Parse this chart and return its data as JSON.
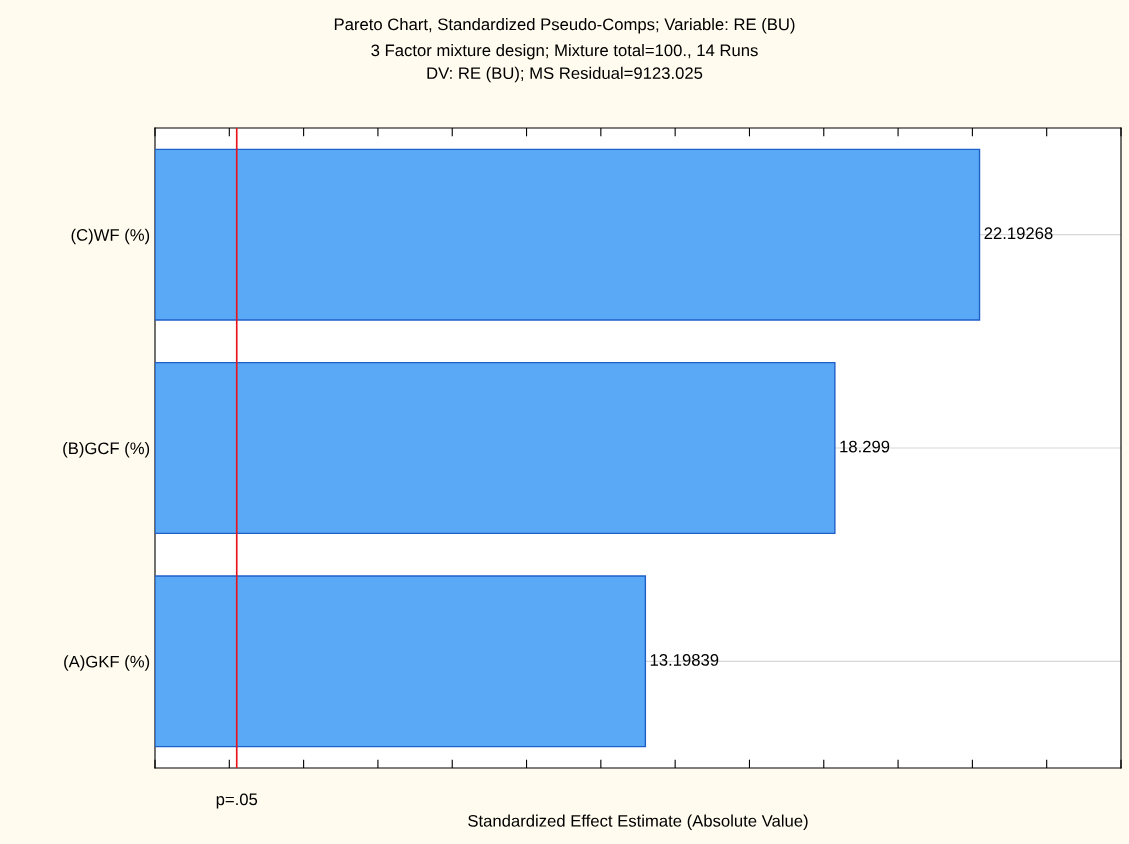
{
  "chart_data": {
    "type": "bar",
    "orientation": "horizontal",
    "title": "Pareto Chart, Standardized Pseudo-Comps; Variable: RE (BU)",
    "subtitle": "3 Factor mixture design; Mixture total=100., 14 Runs\nDV: RE (BU); MS Residual=9123.025",
    "xlabel": "Standardized Effect Estimate (Absolute Value)",
    "categories": [
      "(C)WF (%)",
      "(B)GCF (%)",
      "(A)GKF (%)"
    ],
    "values": [
      22.19268,
      18.299,
      13.19839
    ],
    "color": "#5aa9f6",
    "data_labels": true,
    "xlim": [
      0,
      26
    ],
    "xticks": [
      {
        "value": 0,
        "label": null
      },
      {
        "value": 2,
        "label": null
      },
      {
        "value": 4,
        "label": null
      },
      {
        "value": 6,
        "label": null
      },
      {
        "value": 8,
        "label": null
      },
      {
        "value": 10,
        "label": null
      },
      {
        "value": 12,
        "label": null
      },
      {
        "value": 14,
        "label": null
      },
      {
        "value": 16,
        "label": null
      },
      {
        "value": 18,
        "label": null
      },
      {
        "value": 20,
        "label": null
      },
      {
        "value": 22,
        "label": null
      },
      {
        "value": 24,
        "label": null
      },
      {
        "value": 26,
        "label": null
      }
    ],
    "ref_lines": [
      {
        "axis": "x",
        "value": 2.2,
        "label": "p=.05",
        "color": "#e8141b"
      }
    ],
    "grid": "y",
    "legend": false
  }
}
